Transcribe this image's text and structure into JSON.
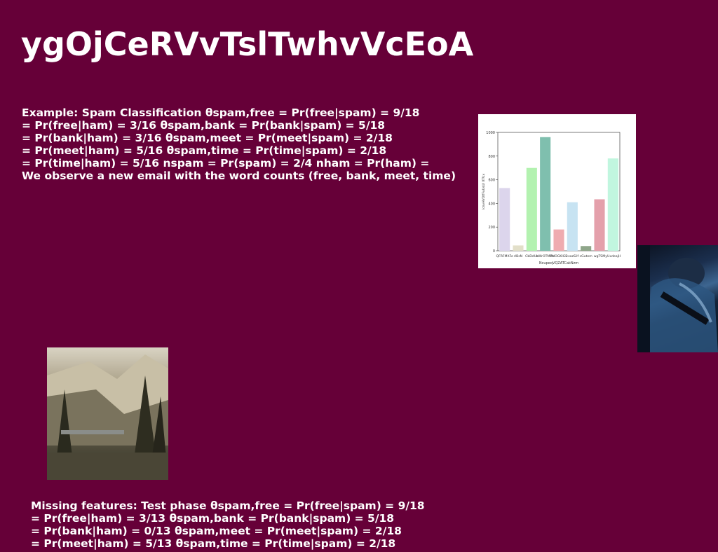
{
  "title": "ygOjCeRVvTslTwhvVcEoA",
  "block1": {
    "lines": [
      "Example: Spam Classification θspam,free = Pr(free|spam) = 9/18",
      "= Pr(free|ham) = 3/16 θspam,bank = Pr(bank|spam) = 5/18",
      "= Pr(bank|ham) = 3/16 θspam,meet = Pr(meet|spam) = 2/18",
      "= Pr(meet|ham) = 5/16 θspam,time = Pr(time|spam) = 2/18",
      "= Pr(time|ham) = 5/16 nspam = Pr(spam) = 2/4 nham = Pr(ham) =",
      "We observe a new email with the word counts (free, bank, meet, time)"
    ]
  },
  "block2": {
    "lines": [
      "Missing features: Test phase θspam,free = Pr(free|spam) = 9/18",
      "= Pr(free|ham) = 3/13 θspam,bank = Pr(bank|spam) = 5/18",
      "= Pr(bank|ham) = 0/13 θspam,meet = Pr(meet|spam) = 2/18",
      "= Pr(meet|ham) = 5/13 θspam,time = Pr(time|spam) = 2/18"
    ]
  },
  "chart_data": {
    "type": "bar",
    "categories": [
      "QFRFMXFe",
      "rlBsN",
      "CbDdUz",
      "bWrOTMRb",
      "PHOGKIGE",
      "cxazSilf",
      "cGutem",
      "wgTSM",
      "yUxdeajH"
    ],
    "values": [
      530,
      45,
      700,
      960,
      180,
      410,
      40,
      435,
      780
    ],
    "colors": [
      "#dcd5ec",
      "#e2dfc9",
      "#b3f2b0",
      "#7fbfae",
      "#efacb0",
      "#c7e3f2",
      "#8fa68a",
      "#e4a0ab",
      "#c1f6df"
    ],
    "xlabel": "NcupeqVQZATCakNzm",
    "ylabel": "lcnvHVOtfFuUsUI XTUx",
    "ylim": [
      0,
      1000
    ],
    "yticks": [
      0,
      200,
      400,
      600,
      800,
      1000
    ]
  },
  "images": {
    "person": "photo-person-in-blue-light",
    "mountain": "photo-snowy-mountain-forest"
  }
}
